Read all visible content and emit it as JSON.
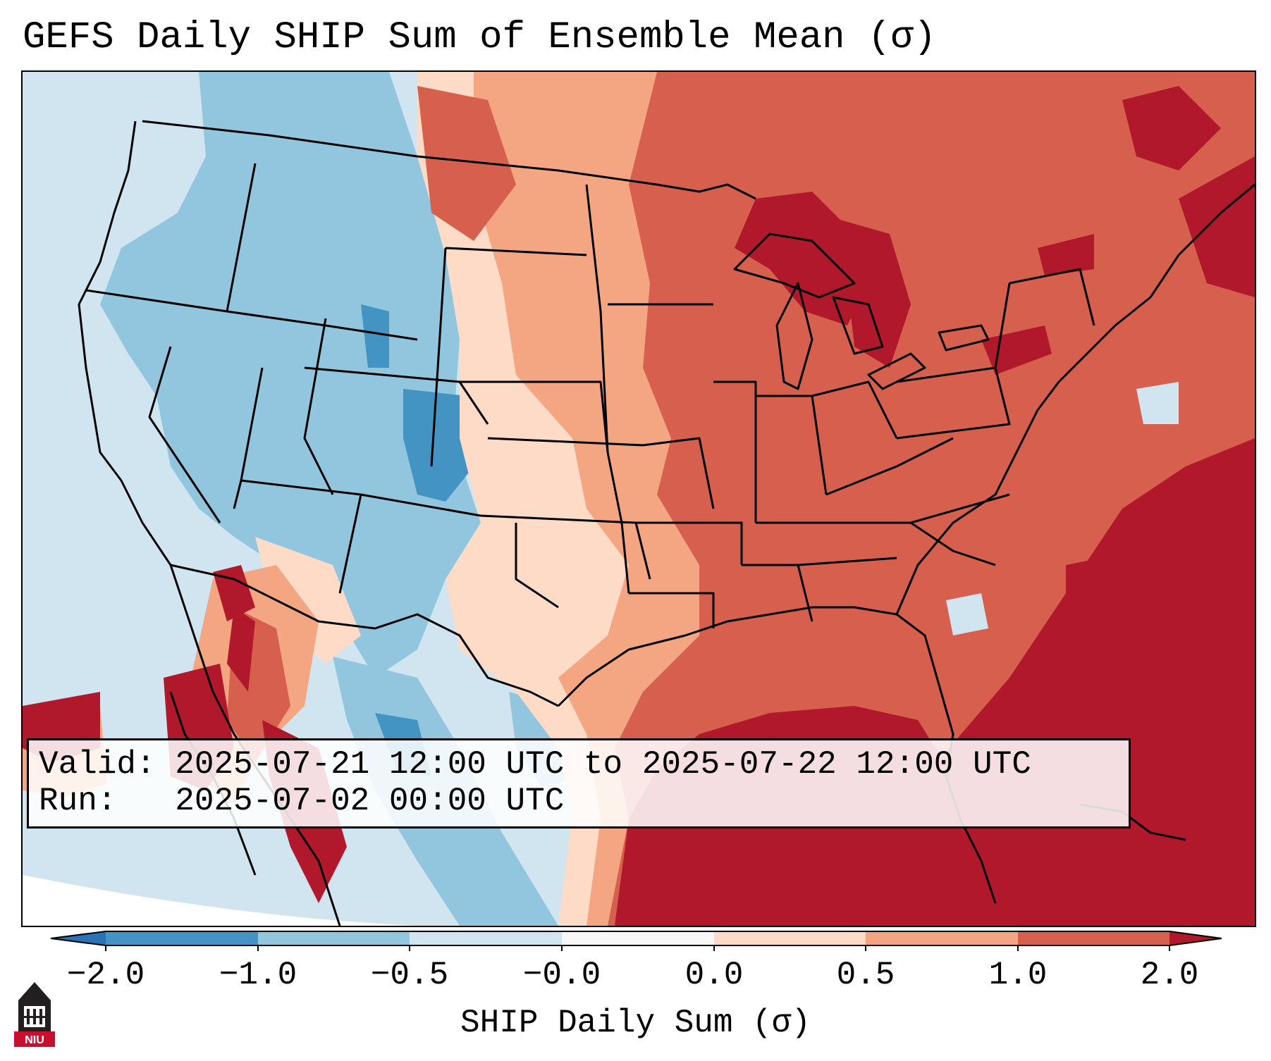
{
  "title": "GEFS Daily SHIP Sum of Ensemble Mean (σ)",
  "info": {
    "valid_line": "Valid: 2025-07-21 12:00 UTC to 2025-07-22 12:00 UTC",
    "run_line": "Run:   2025-07-02 00:00 UTC"
  },
  "colorbar": {
    "label": "SHIP Daily Sum (σ)",
    "ticks": [
      "−2.0",
      "−1.0",
      "−0.5",
      "−0.0",
      "0.0",
      "0.5",
      "1.0",
      "2.0"
    ],
    "levels": [
      -2.0,
      -1.0,
      -0.5,
      -0.0,
      0.0,
      0.5,
      1.0,
      2.0
    ],
    "extend": "both",
    "colors": [
      "#2b73b6",
      "#4393c3",
      "#92c5de",
      "#d1e5f0",
      "#f7f7f7",
      "#fddbc7",
      "#f4a582",
      "#d6604d",
      "#b2182b"
    ]
  },
  "logo": {
    "text": "NIU",
    "icon": "niu-tower-logo-icon",
    "color": "#c8102e"
  },
  "map": {
    "type": "gridded-field-map",
    "region": "CONUS and surroundings",
    "field": "SHIP daily sum, ensemble mean",
    "pattern": {
      "negative": "western US: Pacific Northwest, Great Basin, Rockies, parts of Mexico",
      "positive": "central & eastern US, Great Lakes, Gulf of Mexico, Atlantic"
    }
  }
}
